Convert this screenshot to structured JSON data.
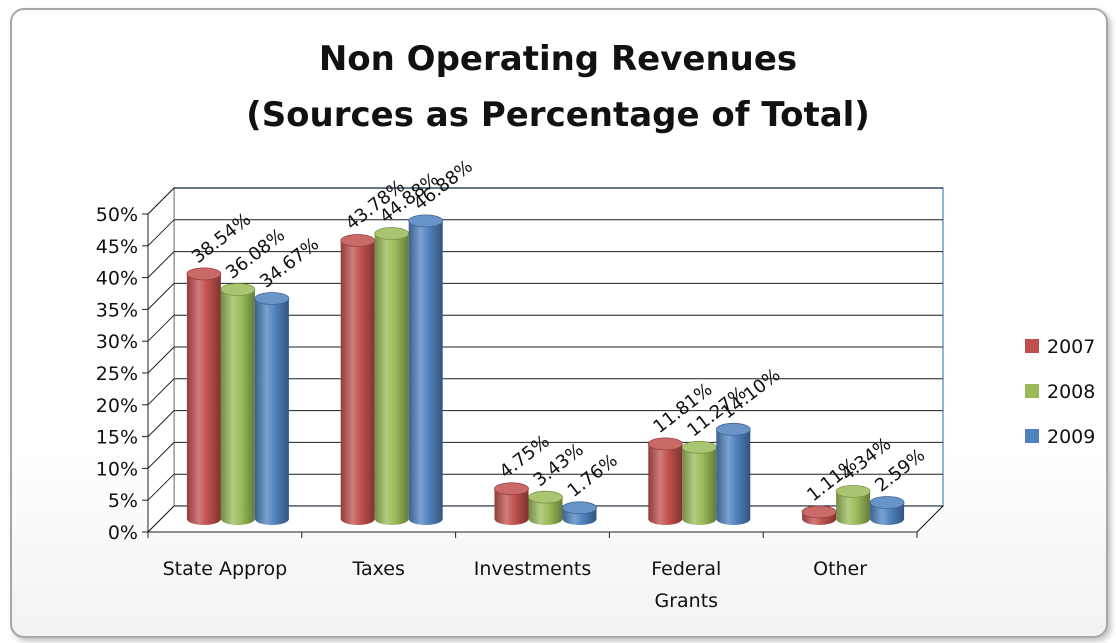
{
  "chart_data": {
    "type": "bar",
    "title_line1": "Non Operating Revenues",
    "title_line2": "(Sources as Percentage of Total)",
    "categories": [
      "State Approp",
      "Taxes",
      "Investments",
      "Federal Grants",
      "Other"
    ],
    "category_lines": [
      [
        "State Approp"
      ],
      [
        "Taxes"
      ],
      [
        "Investments"
      ],
      [
        "Federal",
        "Grants"
      ],
      [
        "Other"
      ]
    ],
    "yticks": [
      "0%",
      "5%",
      "10%",
      "15%",
      "20%",
      "25%",
      "30%",
      "35%",
      "40%",
      "45%",
      "50%"
    ],
    "ylim": [
      0,
      50
    ],
    "grid": true,
    "legend_position": "right",
    "series": [
      {
        "name": "2007",
        "color": "#c0504d",
        "values": [
          38.54,
          43.78,
          4.75,
          11.81,
          1.11
        ],
        "labels": [
          "38.54%",
          "43.78%",
          "4.75%",
          "11.81%",
          "1.11%"
        ]
      },
      {
        "name": "2008",
        "color": "#9bbb59",
        "values": [
          36.08,
          44.88,
          3.43,
          11.27,
          4.34
        ],
        "labels": [
          "36.08%",
          "44.88%",
          "3.43%",
          "11.27%",
          "4.34%"
        ]
      },
      {
        "name": "2009",
        "color": "#4f81bd",
        "values": [
          34.67,
          46.88,
          1.76,
          14.1,
          2.59
        ],
        "labels": [
          "34.67%",
          "46.88%",
          "1.76%",
          "14.10%",
          "2.59%"
        ]
      }
    ]
  }
}
